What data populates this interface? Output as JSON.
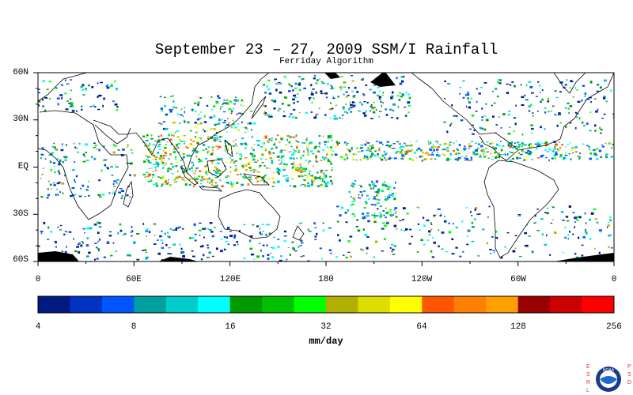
{
  "title": "September 23 – 27, 2009 SSM/I Rainfall",
  "subtitle": "Ferriday Algorithm",
  "map": {
    "lat_labels": [
      "60N",
      "30N",
      "EQ",
      "30S",
      "60S"
    ],
    "lon_labels": [
      "0",
      "60E",
      "120E",
      "180",
      "120W",
      "60W",
      "0"
    ],
    "colors": {
      "land_outline": "#000000",
      "ocean": "#ffffff",
      "no_data": "#000000"
    }
  },
  "colorbar": {
    "colors": [
      "#001a80",
      "#0033c0",
      "#0055ff",
      "#00a0a0",
      "#00cccc",
      "#00ffff",
      "#009900",
      "#00c000",
      "#00ff00",
      "#b0b000",
      "#dddd00",
      "#ffff00",
      "#ff5500",
      "#ff8000",
      "#ffa000",
      "#990000",
      "#cc0000",
      "#ff0000"
    ],
    "tick_labels": [
      "4",
      "8",
      "16",
      "32",
      "64",
      "128",
      "256"
    ],
    "units": "mm/day"
  },
  "logo": {
    "left_text": "ESRL",
    "right_text": "PSD",
    "emblem": "NOAA"
  }
}
